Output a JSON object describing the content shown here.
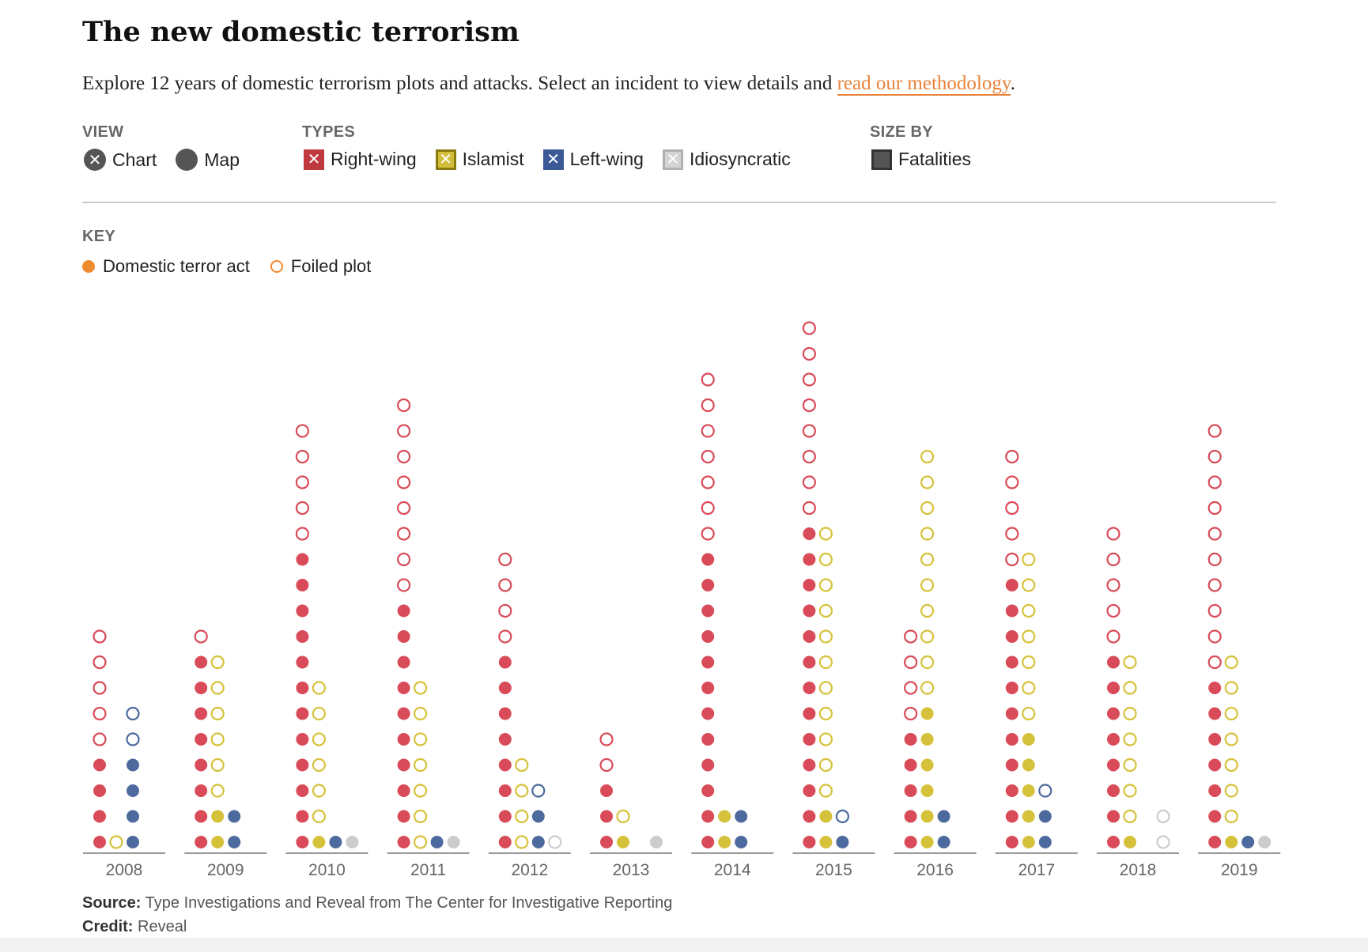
{
  "title": "The new domestic terrorism",
  "intro": {
    "text": "Explore 12 years of domestic terrorism plots and attacks. Select an incident to view details and ",
    "link": "read our methodology",
    "end": "."
  },
  "controls": {
    "view_label": "VIEW",
    "view_options": [
      {
        "label": "Chart",
        "icon": "x-icon",
        "selected": true
      },
      {
        "label": "Map",
        "icon": "circle-icon",
        "selected": false
      }
    ],
    "types_label": "TYPES",
    "types": [
      {
        "label": "Right-wing",
        "color": "#c0393f",
        "checked": true
      },
      {
        "label": "Islamist",
        "color": "#b09a1a",
        "checked": true
      },
      {
        "label": "Left-wing",
        "color": "#3c5a96",
        "checked": true
      },
      {
        "label": "Idiosyncratic",
        "color": "#c8c8c8",
        "checked": true
      }
    ],
    "size_label": "SIZE BY",
    "size_option": {
      "label": "Fatalities",
      "color": "#555555",
      "checked": false
    }
  },
  "key": {
    "label": "KEY",
    "act": "Domestic terror act",
    "plot": "Foiled plot",
    "color": "#f08a2e"
  },
  "colors": {
    "right": "#d94b59",
    "islamist": "#d6c23a",
    "left": "#4d6a9e",
    "idio": "#cccccc",
    "axis": "#999999",
    "tick": "#666666"
  },
  "chart_data": {
    "type": "scatter",
    "description_unit": "incidents per year by type; act = carried out attack, plot = foiled plot",
    "categories": [
      "2008",
      "2009",
      "2010",
      "2011",
      "2012",
      "2013",
      "2014",
      "2015",
      "2016",
      "2017",
      "2018",
      "2019"
    ],
    "series": [
      {
        "name": "Right-wing",
        "act": [
          4,
          8,
          12,
          10,
          8,
          3,
          12,
          13,
          5,
          11,
          8,
          7
        ],
        "plot": [
          5,
          1,
          5,
          8,
          4,
          2,
          7,
          8,
          4,
          5,
          5,
          10
        ]
      },
      {
        "name": "Islamist",
        "act": [
          0,
          2,
          1,
          0,
          0,
          1,
          2,
          2,
          6,
          5,
          1,
          1
        ],
        "plot": [
          1,
          6,
          6,
          7,
          4,
          1,
          0,
          11,
          10,
          7,
          7,
          7
        ]
      },
      {
        "name": "Left-wing",
        "act": [
          4,
          2,
          1,
          1,
          2,
          0,
          2,
          1,
          2,
          2,
          0,
          1
        ],
        "plot": [
          2,
          0,
          0,
          0,
          1,
          0,
          0,
          1,
          0,
          1,
          0,
          0
        ]
      },
      {
        "name": "Idiosyncratic",
        "act": [
          0,
          0,
          1,
          1,
          0,
          1,
          0,
          0,
          0,
          0,
          0,
          1
        ],
        "plot": [
          0,
          0,
          0,
          0,
          1,
          0,
          0,
          0,
          0,
          0,
          2,
          0
        ]
      }
    ]
  },
  "footer": {
    "source_label": "Source:",
    "source_text": " Type Investigations and Reveal from The Center for Investigative Reporting",
    "credit_label": "Credit:",
    "credit_text": " Reveal"
  }
}
